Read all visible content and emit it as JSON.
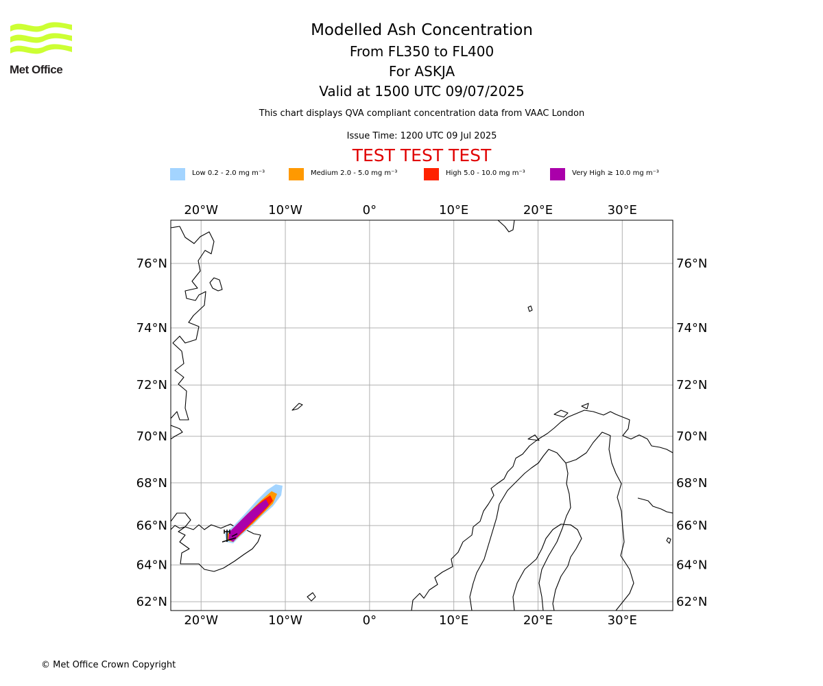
{
  "branding": {
    "name": "Met Office",
    "logo_color": "#ccff33"
  },
  "header": {
    "title": "Modelled Ash Concentration",
    "levels": "From FL350 to FL400",
    "volcano": "For ASKJA",
    "valid": "Valid at 1500 UTC 09/07/2025",
    "description": "This chart displays QVA compliant concentration data from VAAC London",
    "issue_time": "Issue Time: 1200 UTC 09 Jul 2025",
    "test_banner": "TEST TEST TEST"
  },
  "legend": [
    {
      "label": "Low 0.2 - 2.0 mg m⁻³",
      "color": "#a3d4ff"
    },
    {
      "label": "Medium 2.0 - 5.0 mg m⁻³",
      "color": "#ff9900"
    },
    {
      "label": "High 5.0 - 10.0 mg m⁻³",
      "color": "#ff2200"
    },
    {
      "label": "Very High ≥ 10.0 mg m⁻³",
      "color": "#aa00aa"
    }
  ],
  "map": {
    "lon_range": [
      -23.6,
      36.0
    ],
    "lat_range": [
      61.5,
      77.2
    ],
    "lon_ticks": [
      {
        "value": -20,
        "label": "20°W"
      },
      {
        "value": -10,
        "label": "10°W"
      },
      {
        "value": 0,
        "label": "0°"
      },
      {
        "value": 10,
        "label": "10°E"
      },
      {
        "value": 20,
        "label": "20°E"
      },
      {
        "value": 30,
        "label": "30°E"
      }
    ],
    "lat_ticks": [
      {
        "value": 62,
        "label": "62°N"
      },
      {
        "value": 64,
        "label": "64°N"
      },
      {
        "value": 66,
        "label": "66°N"
      },
      {
        "value": 68,
        "label": "68°N"
      },
      {
        "value": 70,
        "label": "70°N"
      },
      {
        "value": 72,
        "label": "72°N"
      },
      {
        "value": 74,
        "label": "74°N"
      },
      {
        "value": 76,
        "label": "76°N"
      }
    ],
    "grid": true
  },
  "footer": {
    "copyright": "© Met Office Crown Copyright"
  }
}
